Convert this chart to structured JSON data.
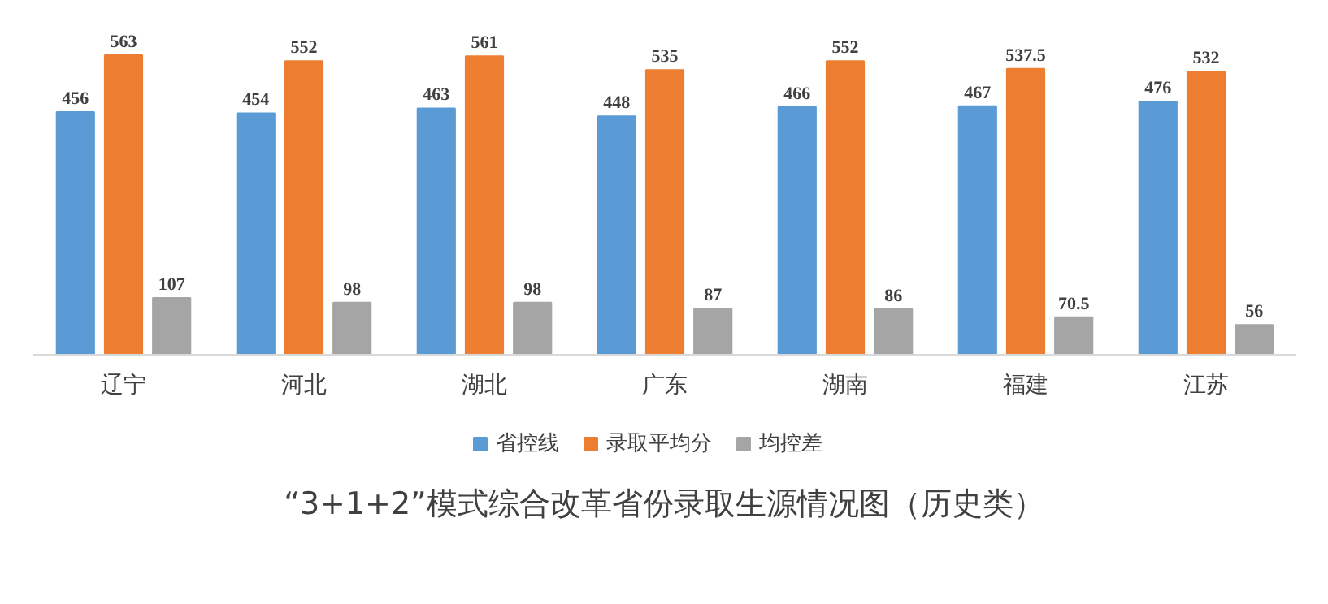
{
  "chart_data": {
    "type": "bar",
    "title": "“3+1+2”模式综合改革省份录取生源情况图（历史类）",
    "categories": [
      "辽宁",
      "河北",
      "湖北",
      "广东",
      "湖南",
      "福建",
      "江苏"
    ],
    "series": [
      {
        "name": "省控线",
        "color": "#5b9bd5",
        "values": [
          456,
          454,
          463,
          448,
          466,
          467,
          476
        ]
      },
      {
        "name": "录取平均分",
        "color": "#ed7d31",
        "values": [
          563,
          552,
          561,
          535,
          552,
          537.5,
          532
        ]
      },
      {
        "name": "均控差",
        "color": "#a5a5a5",
        "values": [
          107,
          98,
          98,
          87,
          86,
          70.5,
          56
        ]
      }
    ],
    "data_labels": true,
    "legend": "bottom",
    "grid": false,
    "tick_labels": "x"
  }
}
